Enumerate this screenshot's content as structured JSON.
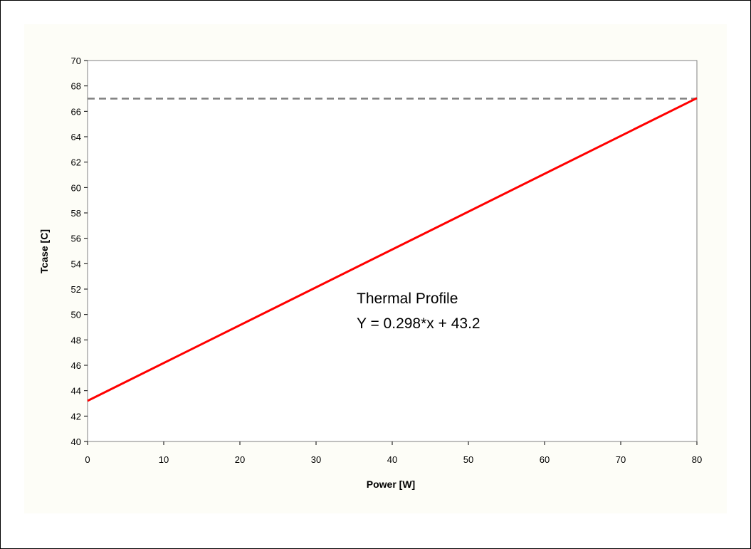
{
  "chart_data": {
    "type": "line",
    "title": "",
    "xlabel": "Power [W]",
    "ylabel": "Tcase [C]",
    "xlim": [
      0,
      80
    ],
    "ylim": [
      40,
      70
    ],
    "x_ticks": [
      "0",
      "10",
      "20",
      "30",
      "40",
      "50",
      "60",
      "70",
      "80"
    ],
    "y_ticks": [
      "40",
      "42",
      "44",
      "46",
      "48",
      "50",
      "52",
      "54",
      "56",
      "58",
      "60",
      "62",
      "64",
      "66",
      "68",
      "70"
    ],
    "grid": false,
    "series": [
      {
        "x": [
          0,
          80
        ],
        "y": [
          43.2,
          67.04
        ],
        "color": "#ff0000",
        "style": "solid"
      }
    ],
    "reference_line": {
      "y": 67,
      "x_range": [
        0,
        80
      ],
      "color": "#808080",
      "style": "dashed"
    },
    "annotation": {
      "line1": "Thermal Profile",
      "line2": "Y = 0.298*x + 43.2"
    },
    "colors": {
      "plot_background": "#ffffff",
      "chart_area": "#fdfdf7"
    }
  }
}
